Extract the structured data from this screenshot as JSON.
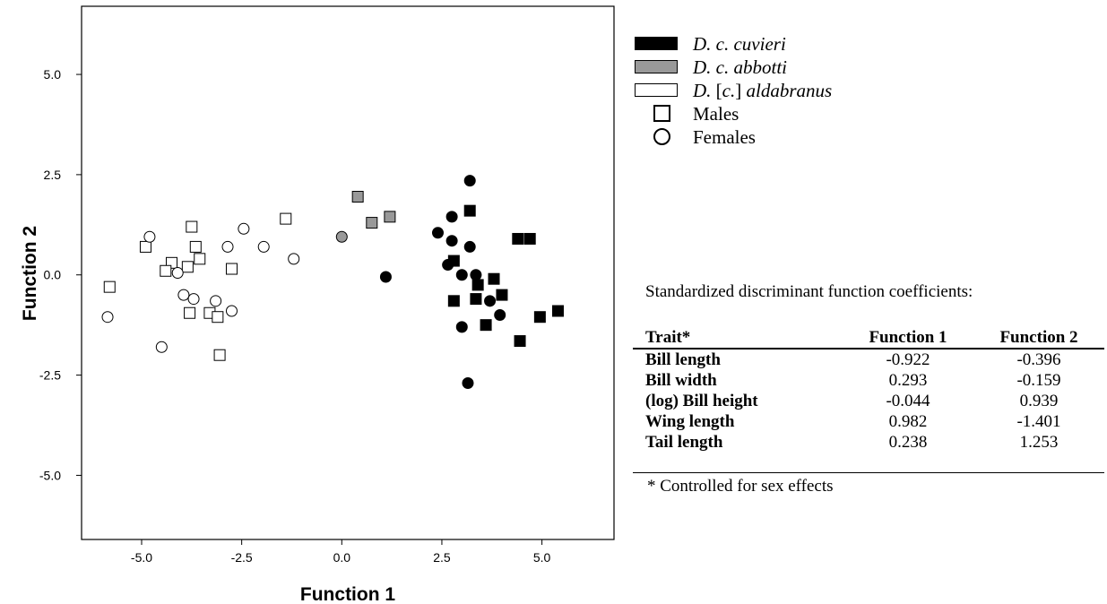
{
  "chart_data": {
    "type": "scatter",
    "title": "",
    "xlabel": "Function 1",
    "ylabel": "Function 2",
    "xlim": [
      -6.5,
      6.8
    ],
    "ylim": [
      -6.6,
      6.7
    ],
    "xticks": [
      -5.0,
      -2.5,
      0.0,
      2.5,
      5.0
    ],
    "yticks": [
      5.0,
      2.5,
      0.0,
      -2.5,
      -5.0
    ],
    "xtick_labels": [
      "-5.0",
      "-2.5",
      "0.0",
      "2.5",
      "5.0"
    ],
    "ytick_labels": [
      "5.0",
      "2.5",
      "0.0",
      "-2.5",
      "-5.0"
    ],
    "grid": false,
    "colors": {
      "cuvieri": "#000000",
      "abbotti": "#999999",
      "aldabranus": "#ffffff"
    },
    "groups": [
      {
        "key": "cuvieri",
        "males": [
          [
            3.2,
            1.6
          ],
          [
            2.8,
            0.35
          ],
          [
            4.4,
            0.9
          ],
          [
            4.7,
            0.9
          ],
          [
            3.8,
            -0.1
          ],
          [
            3.4,
            -0.25
          ],
          [
            3.35,
            -0.6
          ],
          [
            4.0,
            -0.5
          ],
          [
            2.8,
            -0.65
          ],
          [
            3.6,
            -1.25
          ],
          [
            4.95,
            -1.05
          ],
          [
            5.4,
            -0.9
          ],
          [
            4.45,
            -1.65
          ]
        ],
        "females": [
          [
            3.2,
            2.35
          ],
          [
            2.75,
            1.45
          ],
          [
            2.4,
            1.05
          ],
          [
            2.75,
            0.85
          ],
          [
            3.2,
            0.7
          ],
          [
            2.65,
            0.25
          ],
          [
            3.0,
            0.0
          ],
          [
            3.35,
            0.0
          ],
          [
            3.7,
            -0.65
          ],
          [
            3.95,
            -1.0
          ],
          [
            3.0,
            -1.3
          ],
          [
            3.15,
            -2.7
          ],
          [
            1.1,
            -0.05
          ]
        ]
      },
      {
        "key": "abbotti",
        "males": [
          [
            0.4,
            1.95
          ],
          [
            1.2,
            1.45
          ],
          [
            0.75,
            1.3
          ]
        ],
        "females": [
          [
            0.0,
            0.95
          ]
        ]
      },
      {
        "key": "aldabranus",
        "males": [
          [
            -1.4,
            1.4
          ],
          [
            -3.75,
            1.2
          ],
          [
            -4.9,
            0.7
          ],
          [
            -3.65,
            0.7
          ],
          [
            -4.25,
            0.3
          ],
          [
            -3.55,
            0.4
          ],
          [
            -4.4,
            0.1
          ],
          [
            -3.85,
            0.2
          ],
          [
            -2.75,
            0.15
          ],
          [
            -5.8,
            -0.3
          ],
          [
            -3.8,
            -0.95
          ],
          [
            -3.3,
            -0.95
          ],
          [
            -3.1,
            -1.05
          ],
          [
            -3.05,
            -2.0
          ]
        ],
        "females": [
          [
            -4.8,
            0.95
          ],
          [
            -2.45,
            1.15
          ],
          [
            -2.85,
            0.7
          ],
          [
            -1.95,
            0.7
          ],
          [
            -1.2,
            0.4
          ],
          [
            -4.1,
            0.05
          ],
          [
            -3.95,
            -0.5
          ],
          [
            -3.7,
            -0.6
          ],
          [
            -3.15,
            -0.65
          ],
          [
            -2.75,
            -0.9
          ],
          [
            -5.85,
            -1.05
          ],
          [
            -4.5,
            -1.8
          ]
        ]
      }
    ]
  },
  "legend": {
    "species": [
      {
        "key": "cuvieri",
        "prefix": "",
        "italic": "D. c. cuvieri",
        "suffix": ""
      },
      {
        "key": "abbotti",
        "prefix": "",
        "italic": "D. c. abbotti",
        "suffix": ""
      },
      {
        "key": "aldabranus",
        "prefix": "",
        "italic": "D.",
        "suffix": " [c.] aldabranus"
      }
    ],
    "males": "Males",
    "females": "Females"
  },
  "coefficients": {
    "caption": "Standardized discriminant function coefficients:",
    "headers": [
      "Trait*",
      "Function 1",
      "Function 2"
    ],
    "rows": [
      [
        "Bill length",
        "-0.922",
        "-0.396"
      ],
      [
        "Bill width",
        "0.293",
        "-0.159"
      ],
      [
        "(log) Bill height",
        "-0.044",
        "0.939"
      ],
      [
        "Wing length",
        "0.982",
        "-1.401"
      ],
      [
        "Tail length",
        "0.238",
        "1.253"
      ]
    ],
    "footnote": "* Controlled for sex effects"
  }
}
